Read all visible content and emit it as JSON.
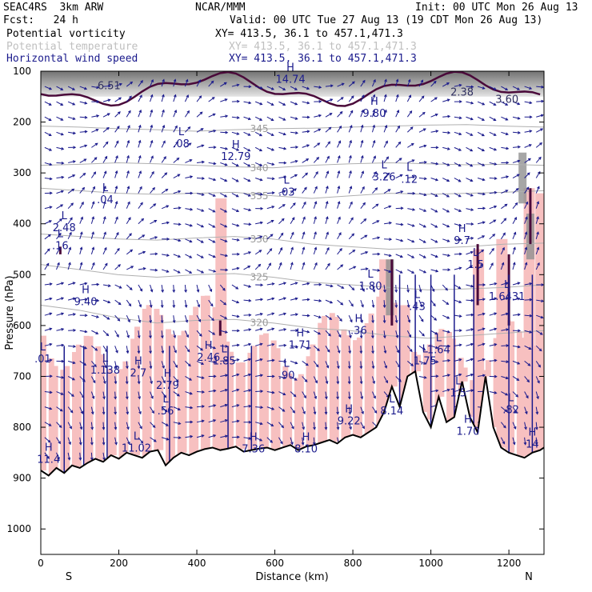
{
  "header": {
    "model": "SEAC4RS  3km ARW",
    "forecast": "Fcst:   24 h",
    "center": "NCAR/MMM",
    "init": "Init: 00 UTC Mon 26 Aug 13",
    "valid": "Valid: 00 UTC Tue 27 Aug 13 (19 CDT Mon 26 Aug 13)",
    "fields": [
      {
        "name": "Potential vorticity",
        "xy": "XY= 413.5, 36.1 to 457.1,471.3"
      },
      {
        "name": "Potential temperature",
        "xy": "XY= 413.5, 36.1 to 457.1,471.3"
      },
      {
        "name": "Horizontal wind speed",
        "xy": "XY= 413.5, 36.1 to 457.1,471.3"
      }
    ]
  },
  "colors": {
    "pv_shade": "#f7c0c0",
    "cloud": "#909090",
    "wind": "#1a1a8c",
    "theta": "#b0b0b0",
    "pv_contour": "#4a0a3a",
    "terrain": "#000000"
  },
  "chart_data": {
    "type": "cross-section",
    "xlabel": "Distance (km)",
    "ylabel": "Pressure (hPa)",
    "xlim": [
      0,
      1290
    ],
    "ylim": [
      1050,
      100
    ],
    "xticks": [
      0,
      200,
      400,
      600,
      800,
      1000,
      1200
    ],
    "yticks": [
      100,
      200,
      300,
      400,
      500,
      600,
      700,
      800,
      900,
      1000
    ],
    "end_labels": {
      "left": "S",
      "right": "N"
    },
    "terrain": {
      "x": [
        0,
        20,
        40,
        60,
        80,
        100,
        120,
        140,
        160,
        180,
        200,
        220,
        240,
        260,
        280,
        300,
        320,
        340,
        360,
        380,
        400,
        420,
        440,
        460,
        480,
        500,
        520,
        540,
        560,
        580,
        600,
        620,
        640,
        660,
        680,
        700,
        720,
        740,
        760,
        780,
        800,
        820,
        840,
        860,
        880,
        900,
        920,
        940,
        960,
        980,
        1000,
        1020,
        1040,
        1060,
        1080,
        1100,
        1120,
        1140,
        1160,
        1180,
        1200,
        1220,
        1240,
        1260,
        1280,
        1290
      ],
      "p": [
        885,
        895,
        880,
        890,
        875,
        880,
        870,
        862,
        868,
        855,
        862,
        850,
        855,
        860,
        848,
        845,
        875,
        860,
        850,
        855,
        848,
        843,
        840,
        845,
        842,
        838,
        848,
        845,
        842,
        840,
        845,
        840,
        835,
        845,
        838,
        835,
        830,
        825,
        832,
        820,
        815,
        820,
        810,
        800,
        770,
        720,
        760,
        700,
        690,
        770,
        800,
        740,
        790,
        780,
        710,
        780,
        810,
        700,
        800,
        840,
        850,
        855,
        860,
        850,
        845,
        840
      ]
    },
    "theta_contours": [
      {
        "label": "345",
        "p": [
          208,
          210,
          213,
          215,
          218,
          215,
          213,
          212,
          210,
          208,
          206,
          205,
          208,
          210
        ]
      },
      {
        "label": "340",
        "p": [
          285,
          283,
          280,
          282,
          285,
          288,
          290,
          285,
          282,
          280,
          282,
          284,
          283,
          285
        ]
      },
      {
        "label": "335",
        "p": [
          330,
          335,
          340,
          342,
          340,
          338,
          345,
          350,
          345,
          340,
          342,
          340,
          338,
          335
        ]
      },
      {
        "label": "330",
        "p": [
          420,
          425,
          430,
          432,
          428,
          425,
          430,
          440,
          445,
          450,
          448,
          445,
          440,
          438
        ]
      },
      {
        "label": "325",
        "p": [
          480,
          490,
          500,
          505,
          500,
          498,
          505,
          515,
          520,
          525,
          530,
          528,
          525,
          520
        ]
      },
      {
        "label": "320",
        "p": [
          560,
          570,
          585,
          595,
          590,
          588,
          595,
          605,
          610,
          620,
          625,
          620,
          615,
          610
        ]
      }
    ],
    "pv_contour_labels": [
      {
        "label": "6.51",
        "x": 175,
        "p": 135
      },
      {
        "label": "2.38",
        "x": 1080,
        "p": 148
      },
      {
        "label": "3.60",
        "x": 1195,
        "p": 162
      }
    ],
    "wind_extrema": [
      {
        "label": "H",
        "value": "14.74",
        "x": 640,
        "p": 118
      },
      {
        "label": "H",
        "value": "9.80",
        "x": 855,
        "p": 185
      },
      {
        "label": "H",
        "value": "12.79",
        "x": 500,
        "p": 270
      },
      {
        "label": "H",
        "value": "9.7",
        "x": 1080,
        "p": 435
      },
      {
        "label": "H",
        "value": "9.40",
        "x": 115,
        "p": 555
      },
      {
        "label": "H",
        "value": ".36",
        "x": 815,
        "p": 612
      },
      {
        "label": "H",
        "value": "1.71",
        "x": 665,
        "p": 640
      },
      {
        "label": "H",
        "value": "2.46",
        "x": 430,
        "p": 665
      },
      {
        "label": "H",
        "value": "2.7",
        "x": 250,
        "p": 695
      },
      {
        "label": "H",
        "value": "2.79",
        "x": 325,
        "p": 720
      },
      {
        "label": "H",
        "value": "9.22",
        "x": 790,
        "p": 790
      },
      {
        "label": "H",
        "value": "1.70",
        "x": 1095,
        "p": 810
      },
      {
        "label": "H",
        "value": "7.36",
        "x": 545,
        "p": 845
      },
      {
        "label": "H",
        "value": "8.10",
        "x": 680,
        "p": 845
      },
      {
        "label": "H",
        "value": "11.4",
        "x": 20,
        "p": 865
      },
      {
        "label": "H",
        "value": "14",
        "x": 1260,
        "p": 835
      },
      {
        "label": "L",
        "value": ".08",
        "x": 360,
        "p": 245
      },
      {
        "label": "L",
        "value": "3.26",
        "x": 880,
        "p": 310
      },
      {
        "label": "L",
        "value": ".12",
        "x": 945,
        "p": 315
      },
      {
        "label": "L",
        "value": ".03",
        "x": 630,
        "p": 340
      },
      {
        "label": "L",
        "value": ".04",
        "x": 165,
        "p": 355
      },
      {
        "label": "L",
        "value": "2.48",
        "x": 60,
        "p": 410
      },
      {
        "label": "L",
        "value": ".16",
        "x": 50,
        "p": 445
      },
      {
        "label": "L",
        "value": "1.5",
        "x": 1115,
        "p": 482
      },
      {
        "label": "L",
        "value": "1.80",
        "x": 845,
        "p": 525
      },
      {
        "label": "L",
        "value": "1.6431",
        "x": 1195,
        "p": 545
      },
      {
        "label": "L",
        "value": ".43",
        "x": 965,
        "p": 565
      },
      {
        "label": "L",
        "value": "1.64",
        "x": 1020,
        "p": 650
      },
      {
        "label": "L",
        "value": "1.75",
        "x": 985,
        "p": 672
      },
      {
        "label": "L",
        "value": "1.138",
        "x": 165,
        "p": 690
      },
      {
        "label": "L",
        "value": "1.85",
        "x": 470,
        "p": 672
      },
      {
        "label": "L",
        "value": ".90",
        "x": 630,
        "p": 700
      },
      {
        "label": "L",
        "value": ".56",
        "x": 320,
        "p": 770
      },
      {
        "label": "L",
        "value": ".82",
        "x": 1205,
        "p": 768
      },
      {
        "label": "L",
        "value": "11.02",
        "x": 245,
        "p": 843
      },
      {
        "label": "L",
        "value": "1.5",
        "x": 1070,
        "p": 735
      },
      {
        "label": "L",
        "value": "8.14",
        "x": 900,
        "p": 770
      },
      {
        "label": "L",
        "value": ".01",
        "x": 5,
        "p": 668
      }
    ]
  }
}
